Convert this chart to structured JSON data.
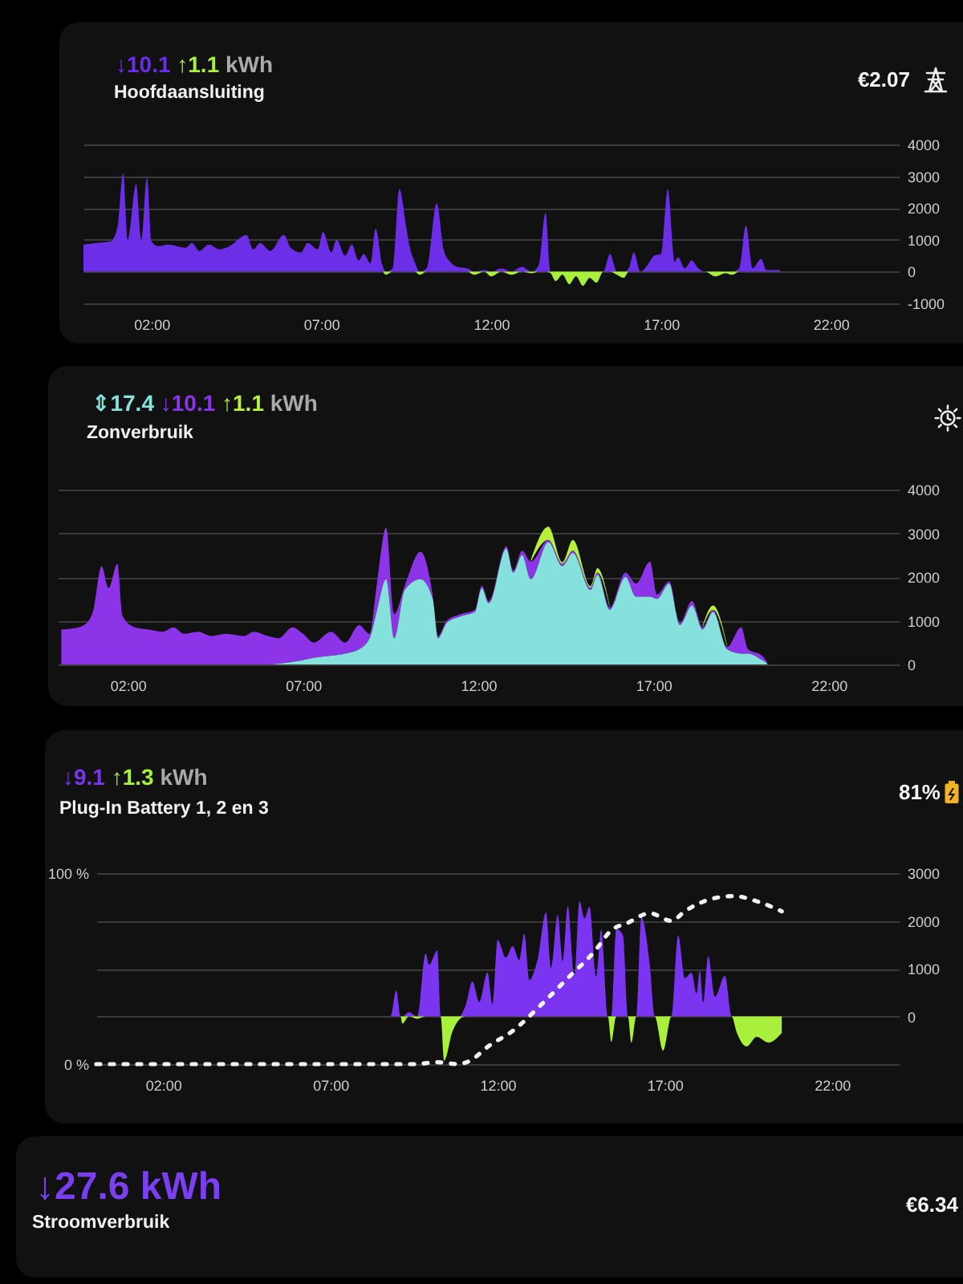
{
  "chart_data": [
    {
      "type": "area",
      "title": "Hoofdaansluiting",
      "subtitle": "↓10.1 ↑1.1 kWh",
      "annotations": [
        "€2.07"
      ],
      "grid": "y",
      "xlim": [
        0,
        24
      ],
      "xticks": [
        {
          "value": 2,
          "label": "02:00"
        },
        {
          "value": 7,
          "label": "07:00"
        },
        {
          "value": 12,
          "label": "12:00"
        },
        {
          "value": 17,
          "label": "17:00"
        },
        {
          "value": 22,
          "label": "22:00"
        }
      ],
      "ylim": [
        -1000,
        4000
      ],
      "yticks": [
        -1000,
        0,
        1000,
        2000,
        3000,
        4000
      ],
      "x": [
        0,
        0.4,
        0.8,
        1.0,
        1.17,
        1.3,
        1.55,
        1.7,
        1.87,
        2.0,
        2.2,
        2.5,
        3.0,
        3.2,
        3.4,
        3.7,
        4.0,
        4.3,
        4.8,
        5.0,
        5.2,
        5.5,
        5.9,
        6.1,
        6.4,
        6.6,
        6.9,
        7.05,
        7.3,
        7.45,
        7.7,
        7.9,
        8.1,
        8.25,
        8.45,
        8.6,
        8.8,
        8.9,
        9.1,
        9.3,
        9.5,
        9.6,
        9.75,
        9.9,
        10.1,
        10.4,
        10.6,
        10.8,
        11.0,
        11.3,
        11.5,
        11.8,
        12.0,
        12.3,
        12.6,
        12.9,
        13.2,
        13.4,
        13.6,
        13.75,
        13.9,
        14.1,
        14.3,
        14.5,
        14.7,
        14.9,
        15.1,
        15.3,
        15.5,
        15.7,
        15.9,
        16.05,
        16.2,
        16.4,
        16.6,
        16.8,
        17.0,
        17.2,
        17.4,
        17.5,
        17.7,
        17.9,
        18.1,
        18.3,
        18.6,
        18.9,
        19.1,
        19.3,
        19.5,
        19.7,
        19.95,
        20.1,
        20.5
      ],
      "series": [
        {
          "color": "#6c2ee6",
          "values": [
            850,
            900,
            950,
            1400,
            3100,
            1000,
            2750,
            1000,
            2950,
            950,
            800,
            850,
            750,
            900,
            650,
            850,
            700,
            800,
            1150,
            700,
            900,
            650,
            1150,
            750,
            600,
            900,
            700,
            1250,
            600,
            1000,
            500,
            850,
            350,
            550,
            250,
            1350,
            200,
            0,
            100,
            2600,
            1400,
            800,
            300,
            0,
            100,
            2150,
            700,
            300,
            150,
            100,
            0,
            50,
            0,
            100,
            0,
            150,
            0,
            200,
            1850,
            0,
            0,
            0,
            0,
            0,
            0,
            0,
            0,
            0,
            550,
            0,
            0,
            100,
            600,
            0,
            200,
            500,
            550,
            2600,
            300,
            450,
            100,
            350,
            100,
            0,
            0,
            0,
            0,
            100,
            1450,
            100,
            400,
            50,
            50
          ]
        },
        {
          "color": "#a8f03c",
          "values": [
            0,
            0,
            0,
            0,
            0,
            0,
            0,
            0,
            0,
            0,
            0,
            0,
            0,
            0,
            0,
            0,
            0,
            0,
            0,
            0,
            0,
            0,
            0,
            0,
            0,
            0,
            0,
            0,
            0,
            0,
            0,
            0,
            0,
            0,
            0,
            0,
            0,
            -100,
            0,
            0,
            0,
            0,
            0,
            -100,
            0,
            0,
            0,
            0,
            0,
            0,
            -100,
            0,
            -150,
            0,
            -100,
            0,
            -50,
            0,
            0,
            -50,
            -300,
            -100,
            -400,
            -150,
            -450,
            -200,
            -350,
            0,
            0,
            -100,
            -200,
            0,
            0,
            0,
            0,
            0,
            0,
            0,
            0,
            0,
            0,
            0,
            0,
            0,
            -150,
            -50,
            -100,
            0,
            0,
            0,
            0,
            0,
            0
          ]
        }
      ]
    },
    {
      "type": "area",
      "title": "Zonverbruik",
      "subtitle": "⇕17.4 ↓10.1 ↑1.1 kWh",
      "stacked": true,
      "grid": "y",
      "xlim": [
        0,
        24
      ],
      "xticks": [
        {
          "value": 2,
          "label": "02:00"
        },
        {
          "value": 7,
          "label": "07:00"
        },
        {
          "value": 12,
          "label": "12:00"
        },
        {
          "value": 17,
          "label": "17:00"
        },
        {
          "value": 22,
          "label": "22:00"
        }
      ],
      "ylim": [
        0,
        4000
      ],
      "yticks": [
        0,
        1000,
        2000,
        3000,
        4000
      ],
      "x": [
        0.1,
        0.4,
        0.75,
        1.0,
        1.25,
        1.45,
        1.7,
        1.85,
        2.2,
        2.6,
        3.0,
        3.3,
        3.6,
        4.0,
        4.4,
        4.8,
        5.3,
        5.6,
        6.0,
        6.3,
        6.7,
        7.0,
        7.3,
        7.8,
        8.2,
        8.6,
        8.9,
        9.1,
        9.37,
        9.6,
        9.9,
        10.35,
        10.7,
        10.85,
        11.1,
        11.5,
        11.9,
        12.1,
        12.3,
        12.8,
        13.0,
        13.25,
        13.5,
        14.0,
        14.4,
        14.7,
        15.2,
        15.4,
        15.75,
        16.2,
        16.5,
        16.9,
        17.1,
        17.45,
        17.75,
        18.1,
        18.4,
        18.7,
        19.1,
        19.5,
        19.7,
        20.1,
        20.25
      ],
      "series": [
        {
          "color": "#86e0dc",
          "values": [
            0,
            0,
            0,
            0,
            0,
            0,
            0,
            0,
            0,
            0,
            0,
            0,
            0,
            0,
            0,
            0,
            0,
            0,
            0,
            20,
            60,
            100,
            150,
            200,
            250,
            350,
            600,
            1200,
            1950,
            600,
            1700,
            1950,
            1500,
            600,
            950,
            1100,
            1200,
            1750,
            1400,
            2650,
            2100,
            2500,
            1950,
            2800,
            2250,
            2550,
            1700,
            2050,
            1250,
            2000,
            1550,
            1550,
            1500,
            1850,
            900,
            1350,
            800,
            1200,
            350,
            250,
            250,
            100,
            20
          ]
        },
        {
          "color": "#8e34e8",
          "values": [
            800,
            820,
            900,
            1200,
            2250,
            1750,
            2300,
            1100,
            850,
            800,
            750,
            850,
            700,
            750,
            650,
            700,
            650,
            750,
            650,
            580,
            790,
            600,
            350,
            550,
            250,
            550,
            100,
            600,
            1180,
            550,
            100,
            630,
            70,
            50,
            50,
            50,
            50,
            50,
            50,
            50,
            50,
            100,
            400,
            50,
            50,
            50,
            50,
            50,
            50,
            100,
            300,
            800,
            100,
            50,
            50,
            100,
            50,
            50,
            50,
            600,
            100,
            100,
            10
          ]
        },
        {
          "color": "#b8f03a",
          "values": [
            null,
            null,
            null,
            null,
            null,
            null,
            null,
            null,
            null,
            null,
            null,
            null,
            null,
            null,
            null,
            null,
            null,
            null,
            null,
            null,
            null,
            null,
            null,
            null,
            null,
            null,
            null,
            null,
            null,
            null,
            null,
            null,
            null,
            null,
            null,
            null,
            null,
            null,
            null,
            null,
            null,
            null,
            40,
            300,
            40,
            250,
            40,
            100,
            40,
            null,
            null,
            null,
            null,
            null,
            null,
            null,
            40,
            100,
            40,
            null,
            null,
            null,
            null
          ]
        }
      ]
    },
    {
      "type": "area",
      "title": "Plug-In Battery 1, 2 en 3",
      "subtitle": "↓9.1 ↑1.3 kWh",
      "annotations": [
        "81%"
      ],
      "grid": "y",
      "xlim": [
        0,
        24
      ],
      "xticks": [
        {
          "value": 2,
          "label": "02:00"
        },
        {
          "value": 7,
          "label": "07:00"
        },
        {
          "value": 12,
          "label": "12:00"
        },
        {
          "value": 17,
          "label": "17:00"
        },
        {
          "value": 22,
          "label": "22:00"
        }
      ],
      "ylim": [
        -1000,
        3000
      ],
      "yticks": [
        {
          "value": -1000,
          "label": null
        },
        0,
        1000,
        2000,
        3000
      ],
      "y2lim": [
        0,
        100
      ],
      "y2ticks": [
        {
          "value": 0,
          "label": "0 %"
        },
        {
          "value": 100,
          "label": "100 %"
        }
      ],
      "x": [
        0.1,
        8.8,
        8.97,
        9.1,
        9.15,
        9.35,
        9.6,
        9.85,
        9.95,
        10.2,
        10.3,
        10.4,
        10.65,
        10.85,
        11.05,
        11.25,
        11.45,
        11.7,
        11.85,
        12.0,
        12.25,
        12.45,
        12.65,
        12.8,
        12.95,
        13.2,
        13.45,
        13.6,
        13.8,
        13.95,
        14.1,
        14.3,
        14.45,
        14.6,
        14.75,
        14.95,
        15.1,
        15.3,
        15.4,
        15.55,
        15.75,
        15.9,
        16.0,
        16.15,
        16.3,
        16.55,
        16.7,
        16.95,
        17.2,
        17.4,
        17.6,
        17.8,
        17.95,
        18.05,
        18.15,
        18.3,
        18.5,
        18.8,
        19.0,
        19.15,
        19.45,
        19.75,
        20.1,
        20.5
      ],
      "series": [
        {
          "color": "#7b35f0",
          "values": [
            0,
            0,
            540,
            0,
            0,
            90,
            0,
            1320,
            1080,
            1380,
            0,
            0,
            0,
            0,
            240,
            730,
            300,
            920,
            250,
            1600,
            1230,
            1470,
            1180,
            1730,
            760,
            1200,
            2180,
            1020,
            2130,
            1150,
            2310,
            850,
            2410,
            2050,
            2300,
            840,
            1820,
            0,
            0,
            1830,
            1700,
            0,
            0,
            0,
            2080,
            1100,
            0,
            0,
            0,
            1700,
            800,
            910,
            480,
            960,
            290,
            1260,
            410,
            850,
            0,
            0,
            0,
            0,
            0,
            0
          ]
        },
        {
          "color": "#a8f03c",
          "values": [
            0,
            0,
            0,
            0,
            -150,
            0,
            -50,
            0,
            0,
            0,
            0,
            -930,
            -320,
            -70,
            0,
            0,
            0,
            0,
            0,
            0,
            0,
            0,
            0,
            0,
            0,
            0,
            0,
            0,
            0,
            0,
            0,
            0,
            0,
            0,
            0,
            0,
            0,
            0,
            -530,
            0,
            0,
            0,
            -550,
            0,
            0,
            0,
            0,
            -720,
            0,
            0,
            0,
            0,
            0,
            0,
            0,
            0,
            0,
            0,
            0,
            -330,
            -630,
            -430,
            -550,
            -350
          ]
        },
        {
          "type": "line",
          "axis": "y2",
          "line_style": "dashed",
          "color": "#f2f2f2",
          "x": [
            0,
            2,
            5,
            9.5,
            10.2,
            10.8,
            11.2,
            11.7,
            12.5,
            13.3,
            14.1,
            14.9,
            15.4,
            15.9,
            16.55,
            17.2,
            17.6,
            18.3,
            19.05,
            19.8,
            20.5
          ],
          "values": [
            0,
            0,
            0,
            0,
            1,
            0,
            2,
            9,
            18,
            31,
            45,
            59,
            70,
            74,
            79,
            75,
            80,
            86,
            88,
            85,
            80
          ]
        }
      ]
    },
    {
      "type": "other",
      "title": "Stroomverbruik",
      "subtitle": "↓27.6 kWh",
      "annotations": [
        "€6.34"
      ]
    }
  ]
}
